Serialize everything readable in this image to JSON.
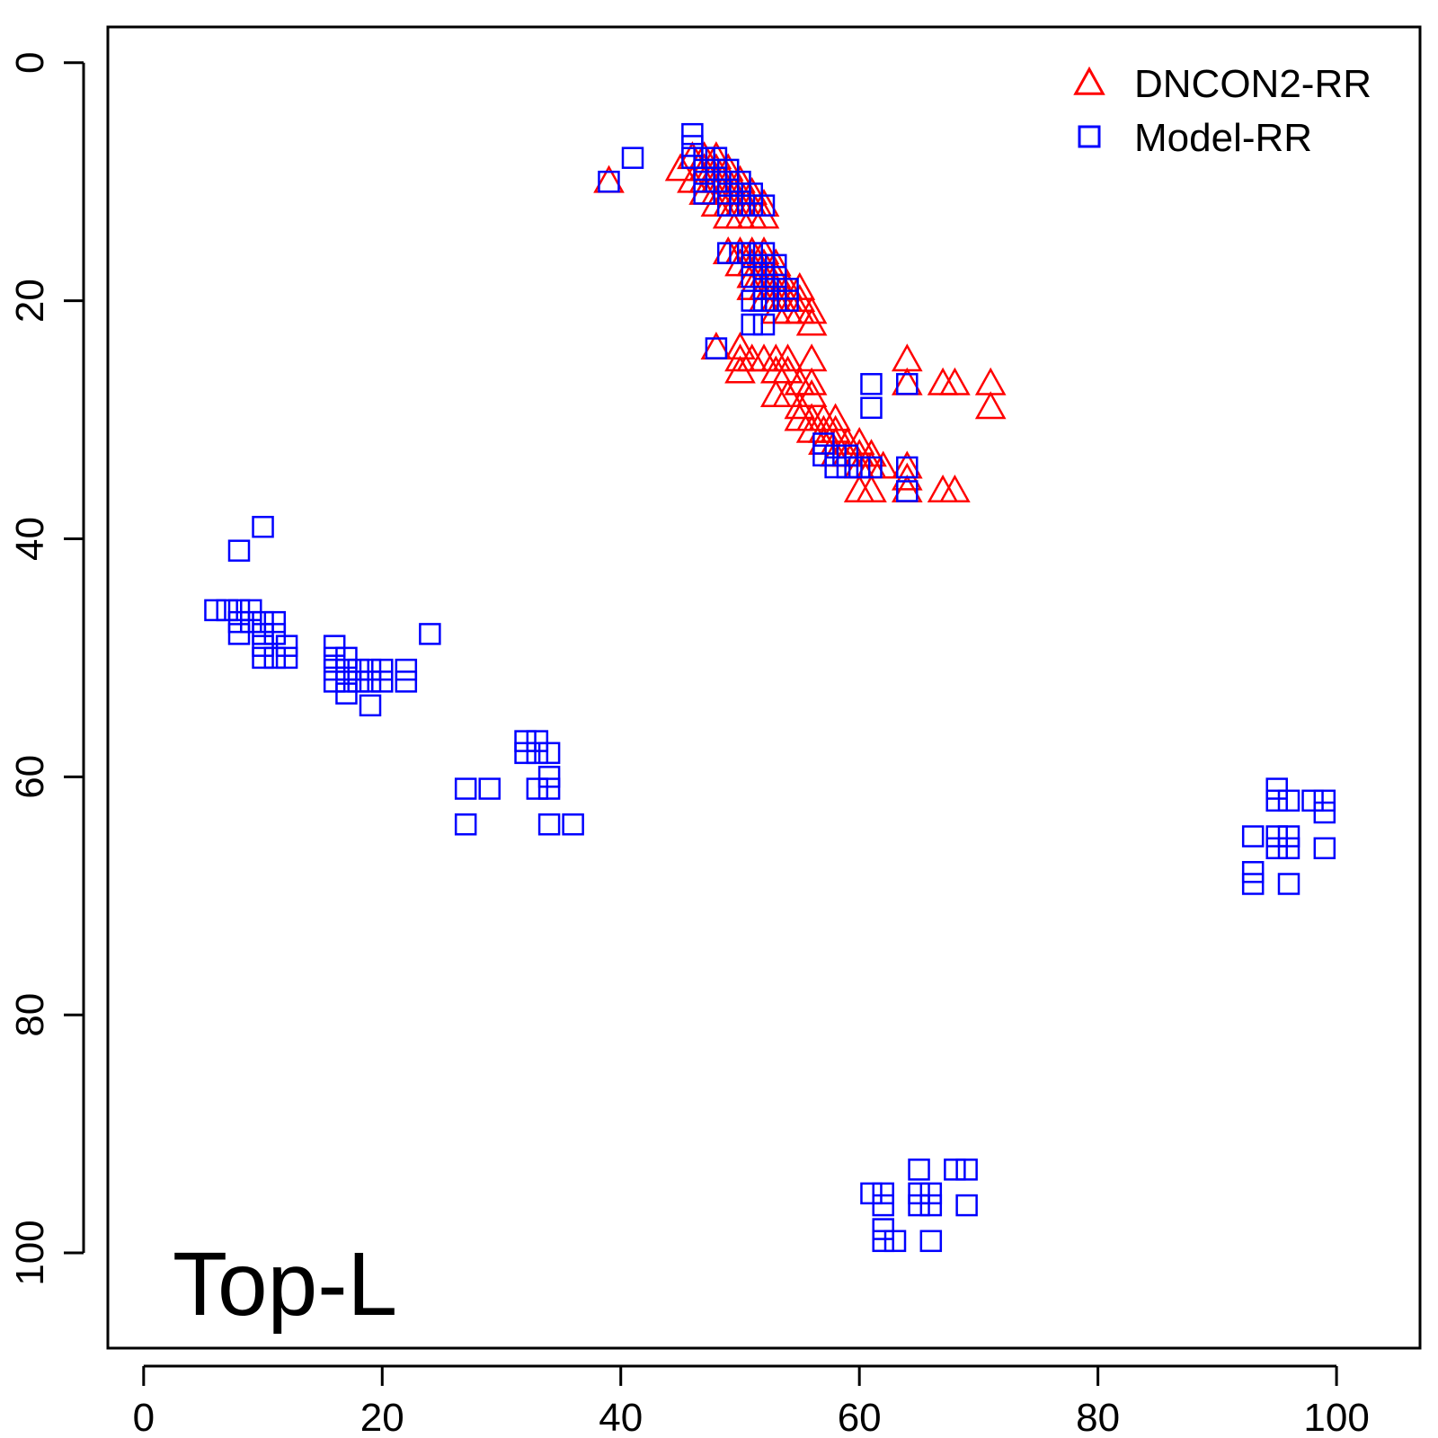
{
  "chart_data": {
    "type": "scatter",
    "title": "",
    "xlabel": "",
    "ylabel": "",
    "panel_label": "Top-L",
    "xlim": [
      -3,
      107
    ],
    "ylim": [
      108,
      -3
    ],
    "y_reversed": true,
    "x_ticks": [
      0,
      20,
      40,
      60,
      80,
      100
    ],
    "y_ticks": [
      0,
      20,
      40,
      60,
      80,
      100
    ],
    "x_tick_labels": [
      "0",
      "20",
      "40",
      "60",
      "80",
      "100"
    ],
    "y_tick_labels": [
      "0",
      "20",
      "40",
      "60",
      "80",
      "100"
    ],
    "grid": false,
    "legend_position": "top-right",
    "series": [
      {
        "name": "DNCON2-RR",
        "marker": "triangle",
        "color": "#ff0000",
        "points": [
          [
            39,
            10
          ],
          [
            45,
            9
          ],
          [
            46,
            8
          ],
          [
            46,
            10
          ],
          [
            47,
            8
          ],
          [
            47,
            9
          ],
          [
            47,
            10
          ],
          [
            47,
            11
          ],
          [
            48,
            8
          ],
          [
            48,
            9
          ],
          [
            48,
            10
          ],
          [
            48,
            11
          ],
          [
            48,
            12
          ],
          [
            49,
            9
          ],
          [
            49,
            10
          ],
          [
            49,
            11
          ],
          [
            49,
            12
          ],
          [
            49,
            13
          ],
          [
            50,
            10
          ],
          [
            50,
            11
          ],
          [
            50,
            12
          ],
          [
            50,
            13
          ],
          [
            51,
            11
          ],
          [
            51,
            12
          ],
          [
            51,
            13
          ],
          [
            52,
            12
          ],
          [
            52,
            13
          ],
          [
            49,
            16
          ],
          [
            50,
            16
          ],
          [
            50,
            17
          ],
          [
            51,
            16
          ],
          [
            51,
            17
          ],
          [
            51,
            18
          ],
          [
            51,
            19
          ],
          [
            52,
            16
          ],
          [
            52,
            17
          ],
          [
            52,
            18
          ],
          [
            52,
            19
          ],
          [
            52,
            20
          ],
          [
            53,
            17
          ],
          [
            53,
            18
          ],
          [
            53,
            19
          ],
          [
            53,
            20
          ],
          [
            53,
            21
          ],
          [
            54,
            19
          ],
          [
            54,
            20
          ],
          [
            54,
            21
          ],
          [
            55,
            19
          ],
          [
            55,
            20
          ],
          [
            55,
            21
          ],
          [
            56,
            21
          ],
          [
            56,
            22
          ],
          [
            48,
            24
          ],
          [
            50,
            24
          ],
          [
            50,
            25
          ],
          [
            50,
            26
          ],
          [
            51,
            25
          ],
          [
            52,
            25
          ],
          [
            53,
            25
          ],
          [
            53,
            26
          ],
          [
            54,
            25
          ],
          [
            54,
            26
          ],
          [
            55,
            27
          ],
          [
            56,
            25
          ],
          [
            53,
            28
          ],
          [
            54,
            28
          ],
          [
            55,
            29
          ],
          [
            56,
            27
          ],
          [
            56,
            28
          ],
          [
            55,
            30
          ],
          [
            56,
            30
          ],
          [
            56,
            31
          ],
          [
            57,
            30
          ],
          [
            57,
            31
          ],
          [
            57,
            32
          ],
          [
            58,
            30
          ],
          [
            58,
            31
          ],
          [
            58,
            32
          ],
          [
            58,
            33
          ],
          [
            59,
            32
          ],
          [
            59,
            33
          ],
          [
            60,
            32
          ],
          [
            60,
            33
          ],
          [
            60,
            34
          ],
          [
            61,
            33
          ],
          [
            61,
            34
          ],
          [
            62,
            34
          ],
          [
            64,
            34
          ],
          [
            64,
            35
          ],
          [
            60,
            36
          ],
          [
            61,
            36
          ],
          [
            64,
            36
          ],
          [
            67,
            36
          ],
          [
            68,
            36
          ],
          [
            64,
            25
          ],
          [
            64,
            27
          ],
          [
            67,
            27
          ],
          [
            68,
            27
          ],
          [
            71,
            27
          ],
          [
            71,
            29
          ]
        ]
      },
      {
        "name": "Model-RR",
        "marker": "square",
        "color": "#0000ff",
        "points": [
          [
            39,
            10
          ],
          [
            41,
            8
          ],
          [
            46,
            6
          ],
          [
            46,
            7
          ],
          [
            46,
            8
          ],
          [
            47,
            8
          ],
          [
            47,
            9
          ],
          [
            47,
            10
          ],
          [
            47,
            11
          ],
          [
            48,
            8
          ],
          [
            48,
            9
          ],
          [
            48,
            10
          ],
          [
            49,
            9
          ],
          [
            49,
            10
          ],
          [
            49,
            11
          ],
          [
            49,
            12
          ],
          [
            50,
            10
          ],
          [
            50,
            11
          ],
          [
            50,
            12
          ],
          [
            51,
            11
          ],
          [
            51,
            12
          ],
          [
            52,
            12
          ],
          [
            49,
            16
          ],
          [
            50,
            16
          ],
          [
            51,
            16
          ],
          [
            51,
            17
          ],
          [
            51,
            18
          ],
          [
            51,
            20
          ],
          [
            51,
            22
          ],
          [
            52,
            16
          ],
          [
            52,
            17
          ],
          [
            52,
            18
          ],
          [
            52,
            19
          ],
          [
            52,
            20
          ],
          [
            52,
            22
          ],
          [
            53,
            17
          ],
          [
            53,
            18
          ],
          [
            53,
            19
          ],
          [
            53,
            20
          ],
          [
            54,
            19
          ],
          [
            54,
            20
          ],
          [
            48,
            24
          ],
          [
            57,
            32
          ],
          [
            57,
            33
          ],
          [
            58,
            33
          ],
          [
            58,
            34
          ],
          [
            59,
            33
          ],
          [
            59,
            34
          ],
          [
            60,
            34
          ],
          [
            61,
            34
          ],
          [
            61,
            27
          ],
          [
            61,
            29
          ],
          [
            64,
            27
          ],
          [
            64,
            34
          ],
          [
            64,
            36
          ],
          [
            10,
            39
          ],
          [
            8,
            41
          ],
          [
            6,
            46
          ],
          [
            7,
            46
          ],
          [
            8,
            46
          ],
          [
            8,
            47
          ],
          [
            8,
            48
          ],
          [
            9,
            46
          ],
          [
            9,
            47
          ],
          [
            10,
            47
          ],
          [
            10,
            48
          ],
          [
            10,
            49
          ],
          [
            10,
            50
          ],
          [
            11,
            47
          ],
          [
            11,
            48
          ],
          [
            11,
            50
          ],
          [
            12,
            49
          ],
          [
            12,
            50
          ],
          [
            16,
            49
          ],
          [
            16,
            50
          ],
          [
            16,
            51
          ],
          [
            16,
            52
          ],
          [
            17,
            50
          ],
          [
            17,
            51
          ],
          [
            17,
            52
          ],
          [
            17,
            53
          ],
          [
            18,
            51
          ],
          [
            18,
            52
          ],
          [
            19,
            51
          ],
          [
            19,
            52
          ],
          [
            19,
            54
          ],
          [
            20,
            51
          ],
          [
            20,
            52
          ],
          [
            22,
            51
          ],
          [
            22,
            52
          ],
          [
            24,
            48
          ],
          [
            27,
            61
          ],
          [
            29,
            61
          ],
          [
            27,
            64
          ],
          [
            32,
            57
          ],
          [
            32,
            58
          ],
          [
            33,
            57
          ],
          [
            33,
            58
          ],
          [
            33,
            61
          ],
          [
            34,
            58
          ],
          [
            34,
            60
          ],
          [
            34,
            61
          ],
          [
            34,
            64
          ],
          [
            36,
            64
          ],
          [
            93,
            65
          ],
          [
            93,
            68
          ],
          [
            93,
            69
          ],
          [
            95,
            61
          ],
          [
            95,
            62
          ],
          [
            95,
            65
          ],
          [
            95,
            66
          ],
          [
            96,
            62
          ],
          [
            96,
            65
          ],
          [
            96,
            66
          ],
          [
            96,
            69
          ],
          [
            98,
            62
          ],
          [
            99,
            62
          ],
          [
            99,
            63
          ],
          [
            99,
            66
          ],
          [
            62,
            95
          ],
          [
            62,
            96
          ],
          [
            62,
            98
          ],
          [
            62,
            99
          ],
          [
            63,
            99
          ],
          [
            61,
            95
          ],
          [
            65,
            93
          ],
          [
            65,
            95
          ],
          [
            65,
            96
          ],
          [
            66,
            95
          ],
          [
            66,
            96
          ],
          [
            66,
            99
          ],
          [
            68,
            93
          ],
          [
            69,
            93
          ],
          [
            69,
            96
          ]
        ]
      }
    ]
  }
}
